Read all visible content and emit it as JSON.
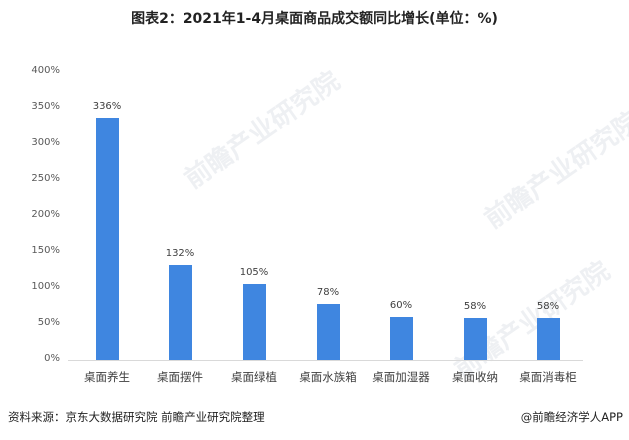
{
  "title": "图表2：2021年1-4月桌面商品成交额同比增长(单位：%)",
  "chart_data": {
    "type": "bar",
    "title": "图表2：2021年1-4月桌面商品成交额同比增长(单位：%)",
    "xlabel": "",
    "ylabel": "",
    "ylim": [
      0,
      400
    ],
    "yticks": [
      "0%",
      "50%",
      "100%",
      "150%",
      "200%",
      "250%",
      "300%",
      "350%",
      "400%"
    ],
    "categories": [
      "桌面养生",
      "桌面摆件",
      "桌面绿植",
      "桌面水族箱",
      "桌面加湿器",
      "桌面收纳",
      "桌面消毒柜"
    ],
    "values": [
      336,
      132,
      105,
      78,
      60,
      58,
      58
    ],
    "data_labels": [
      "336%",
      "132%",
      "105%",
      "78%",
      "60%",
      "58%",
      "58%"
    ],
    "bar_color": "#3f86e0",
    "grid": false,
    "legend": null
  },
  "footer": {
    "source": "资料来源：京东大数据研究院 前瞻产业研究院整理",
    "credit": "@前瞻经济学人APP"
  },
  "watermark": "前瞻产业研究院"
}
